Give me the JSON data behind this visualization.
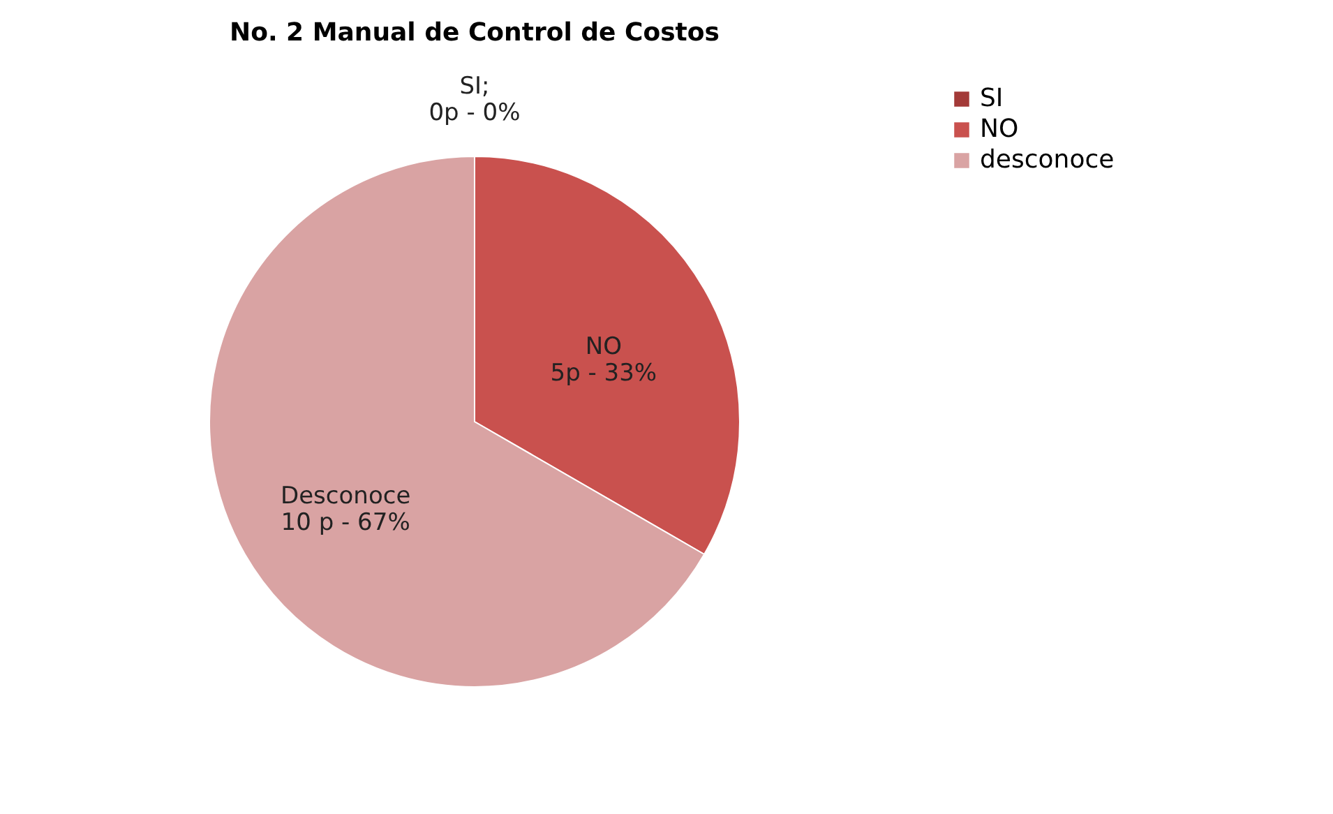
{
  "chart_data": {
    "type": "pie",
    "title": "No. 2 Manual de Control de Costos",
    "categories": [
      "SI",
      "NO",
      "desconoce"
    ],
    "values": [
      0,
      5,
      10
    ],
    "colors": [
      "#a33a38",
      "#c9514e",
      "#d9a3a3"
    ],
    "value_labels": [
      "SI;\n0p  -  0%",
      "NO\n5p  -  33%",
      "Desconoce\n10 p  -  67%"
    ],
    "legend": "right"
  }
}
